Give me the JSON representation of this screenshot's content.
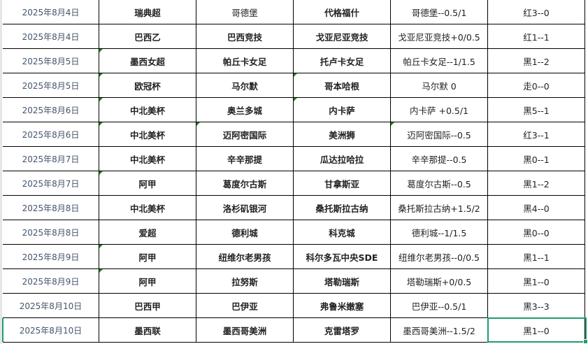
{
  "accent_color": "#1e9e6a",
  "rows": [
    {
      "date": "2025年8月4日",
      "league": "瑞典超",
      "home": "哥德堡",
      "away": "代格福什",
      "handicap": "哥德堡--0.5/1",
      "result": "红3--0"
    },
    {
      "date": "2025年8月4日",
      "league": "巴西乙",
      "home": "巴西竞技",
      "away": "戈亚尼亚竞技",
      "handicap": "戈亚尼亚竞技+0/0.5",
      "result": "红1--1"
    },
    {
      "date": "2025年8月5日",
      "league": "墨西女超",
      "home": "帕丘卡女足",
      "away": "托卢卡女足",
      "handicap": "帕丘卡女足--1/1.5",
      "result": "黑1--2"
    },
    {
      "date": "2025年8月5日",
      "league": "欧冠杯",
      "home": "马尔默",
      "away": "哥本哈根",
      "handicap": "马尔默 0",
      "result": "走0--0"
    },
    {
      "date": "2025年8月6日",
      "league": "中北美杯",
      "home": "奥兰多城",
      "away": "内卡萨",
      "handicap": "内卡萨 +0.5/1",
      "result": "黑5--1"
    },
    {
      "date": "2025年8月6日",
      "league": "中北美杯",
      "home": "迈阿密国际",
      "away": "美洲狮",
      "handicap": "迈阿密国际--0.5",
      "result": "红3--1"
    },
    {
      "date": "2025年8月7日",
      "league": "中北美杯",
      "home": "辛辛那提",
      "away": "瓜达拉哈拉",
      "handicap": "辛辛那提--0.5",
      "result": "黑0--1"
    },
    {
      "date": "2025年8月7日",
      "league": "阿甲",
      "home": "葛度尔古斯",
      "away": "甘拿斯亚",
      "handicap": "葛度尔古斯--0.5",
      "result": "黑1--2"
    },
    {
      "date": "2025年8月8日",
      "league": "中北美杯",
      "home": "洛杉矶银河",
      "away": "桑托斯拉古纳",
      "handicap": "桑托斯拉古纳+1.5/2",
      "result": "黑4--0"
    },
    {
      "date": "2025年8月8日",
      "league": "爱超",
      "home": "德利城",
      "away": "科克城",
      "handicap": "德利城--1/1.5",
      "result": "黑0--0"
    },
    {
      "date": "2025年8月9日",
      "league": "阿甲",
      "home": "纽维尔老男孩",
      "away": "科尔多瓦中央SDE",
      "handicap": "纽维尔老男孩--0/0.5",
      "result": "黑1--1"
    },
    {
      "date": "2025年8月9日",
      "league": "阿甲",
      "home": "拉努斯",
      "away": "塔勒瑞斯",
      "handicap": "塔勒瑞斯+0/0.5",
      "result": "黑1--0"
    },
    {
      "date": "2025年8月10日",
      "league": "巴西甲",
      "home": "巴伊亚",
      "away": "弗鲁米嫩塞",
      "handicap": "巴伊亚--0.5/1",
      "result": "黑3--3"
    },
    {
      "date": "2025年8月10日",
      "league": "墨西联",
      "home": "墨西哥美洲",
      "away": "克雷塔罗",
      "handicap": "墨西哥美洲--1.5/2",
      "result": "黑1--0"
    }
  ]
}
